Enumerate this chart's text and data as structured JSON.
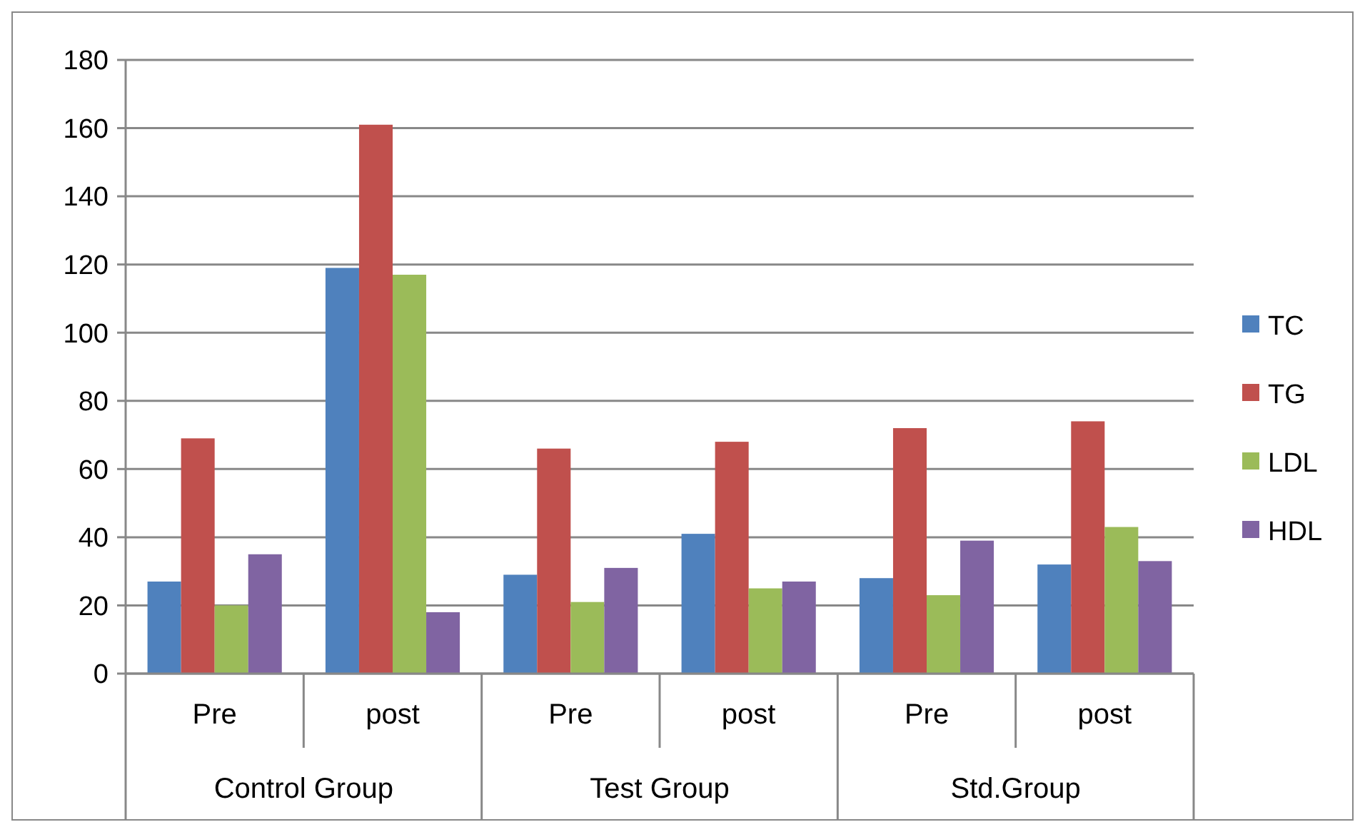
{
  "chart_data": {
    "type": "bar",
    "categories": [
      "Pre",
      "post",
      "Pre",
      "post",
      "Pre",
      "post"
    ],
    "series": [
      {
        "name": "TC",
        "color": "#4f81bd",
        "values": [
          27,
          119,
          29,
          41,
          28,
          32
        ]
      },
      {
        "name": "TG",
        "color": "#c0504d",
        "values": [
          69,
          161,
          66,
          68,
          72,
          74
        ]
      },
      {
        "name": "LDL",
        "color": "#9bbb59",
        "values": [
          20,
          117,
          21,
          25,
          23,
          43
        ]
      },
      {
        "name": "HDL",
        "color": "#8064a2",
        "values": [
          35,
          18,
          31,
          27,
          39,
          33
        ]
      }
    ],
    "annotations": [
      "Control Group",
      "Test Group",
      "Std.Group"
    ],
    "ylim": [
      0,
      180
    ],
    "yticks": [
      0,
      20,
      40,
      60,
      80,
      100,
      120,
      140,
      160,
      180
    ],
    "grid": "y",
    "legend": "right"
  }
}
